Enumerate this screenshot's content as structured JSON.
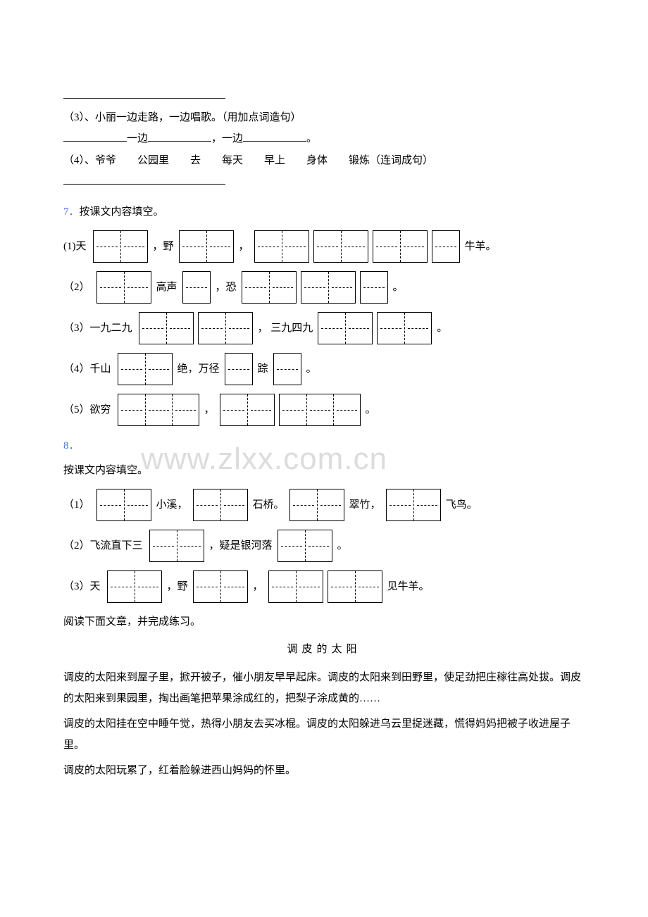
{
  "watermark": "www.zlxx.com.cn",
  "top": {
    "q3_text": "（3）、小丽一边走路，一边唱歌。（用加点词造句）",
    "q3_mid1": "一边",
    "q3_mid2": "，一边",
    "q3_end": "。",
    "q4_text": "（4）、爷爷　　公园里　　去　　每天　　早上　　身体　　锻炼（连词成句）"
  },
  "q7": {
    "num": "7．",
    "title": "按课文内容填空。",
    "rows": [
      {
        "lbl": "(1)天",
        "groups": [
          2
        ],
        "tail1": "，野",
        "groups2": [
          2
        ],
        "tail2": "，",
        "groups3": [
          2,
          2,
          2,
          1
        ],
        "tail3": "牛羊。"
      },
      {
        "lbl": "（2）",
        "groups": [
          2
        ],
        "tail1": "高声",
        "groups2": [
          1
        ],
        "tail2": "，恐",
        "groups3": [
          2,
          2,
          1
        ],
        "tail3": "。"
      },
      {
        "lbl": "（3）一九二九",
        "groups": [
          2,
          2
        ],
        "tail1": "，  三九四九",
        "groups2": [
          2,
          2
        ],
        "tail2": "。"
      },
      {
        "lbl": "（4）千山",
        "groups": [
          2
        ],
        "tail1": "绝，万径",
        "groups2": [
          1
        ],
        "tail2": "踪",
        "groups3": [
          1
        ],
        "tail3": "。"
      },
      {
        "lbl": "（5）欲穷",
        "groups": [
          3
        ],
        "tail1": "，",
        "groups2": [
          2,
          3
        ],
        "tail2": "。"
      }
    ]
  },
  "q8": {
    "num": "8．",
    "title": "按课文内容填空。",
    "rows": [
      {
        "lbl": "（1）",
        "groups": [
          2
        ],
        "tail1": "小溪，",
        "groups2": [
          2
        ],
        "tail2": "石桥。",
        "groups3": [
          2
        ],
        "tail3": "翠竹，",
        "groups4": [
          2
        ],
        "tail4": "飞鸟。"
      },
      {
        "lbl": "（2）飞流直下三",
        "groups": [
          2
        ],
        "tail1": "，疑是银河落",
        "groups2": [
          2
        ],
        "tail2": "。"
      },
      {
        "lbl": "（3）天",
        "groups": [
          2
        ],
        "tail1": "，野",
        "groups2": [
          2
        ],
        "tail2": "，",
        "groups3": [
          2,
          2
        ],
        "tail3": "见牛羊。"
      }
    ]
  },
  "reading": {
    "intro": "阅读下面文章，并完成练习。",
    "title": "调皮的太阳",
    "p1": "调皮的太阳来到屋子里，掀开被子，催小朋友早早起床。调皮的太阳来到田野里，使足劲把庄稼往高处拔。调皮的太阳来到果园里，掏出画笔把苹果涂成红的，把梨子涂成黄的……",
    "p2": "调皮的太阳挂在空中睡午觉，热得小朋友去买冰棍。调皮的太阳躲进乌云里捉迷藏，慌得妈妈把被子收进屋子里。",
    "p3": "调皮的太阳玩累了，红着脸躲进西山妈妈的怀里。"
  }
}
